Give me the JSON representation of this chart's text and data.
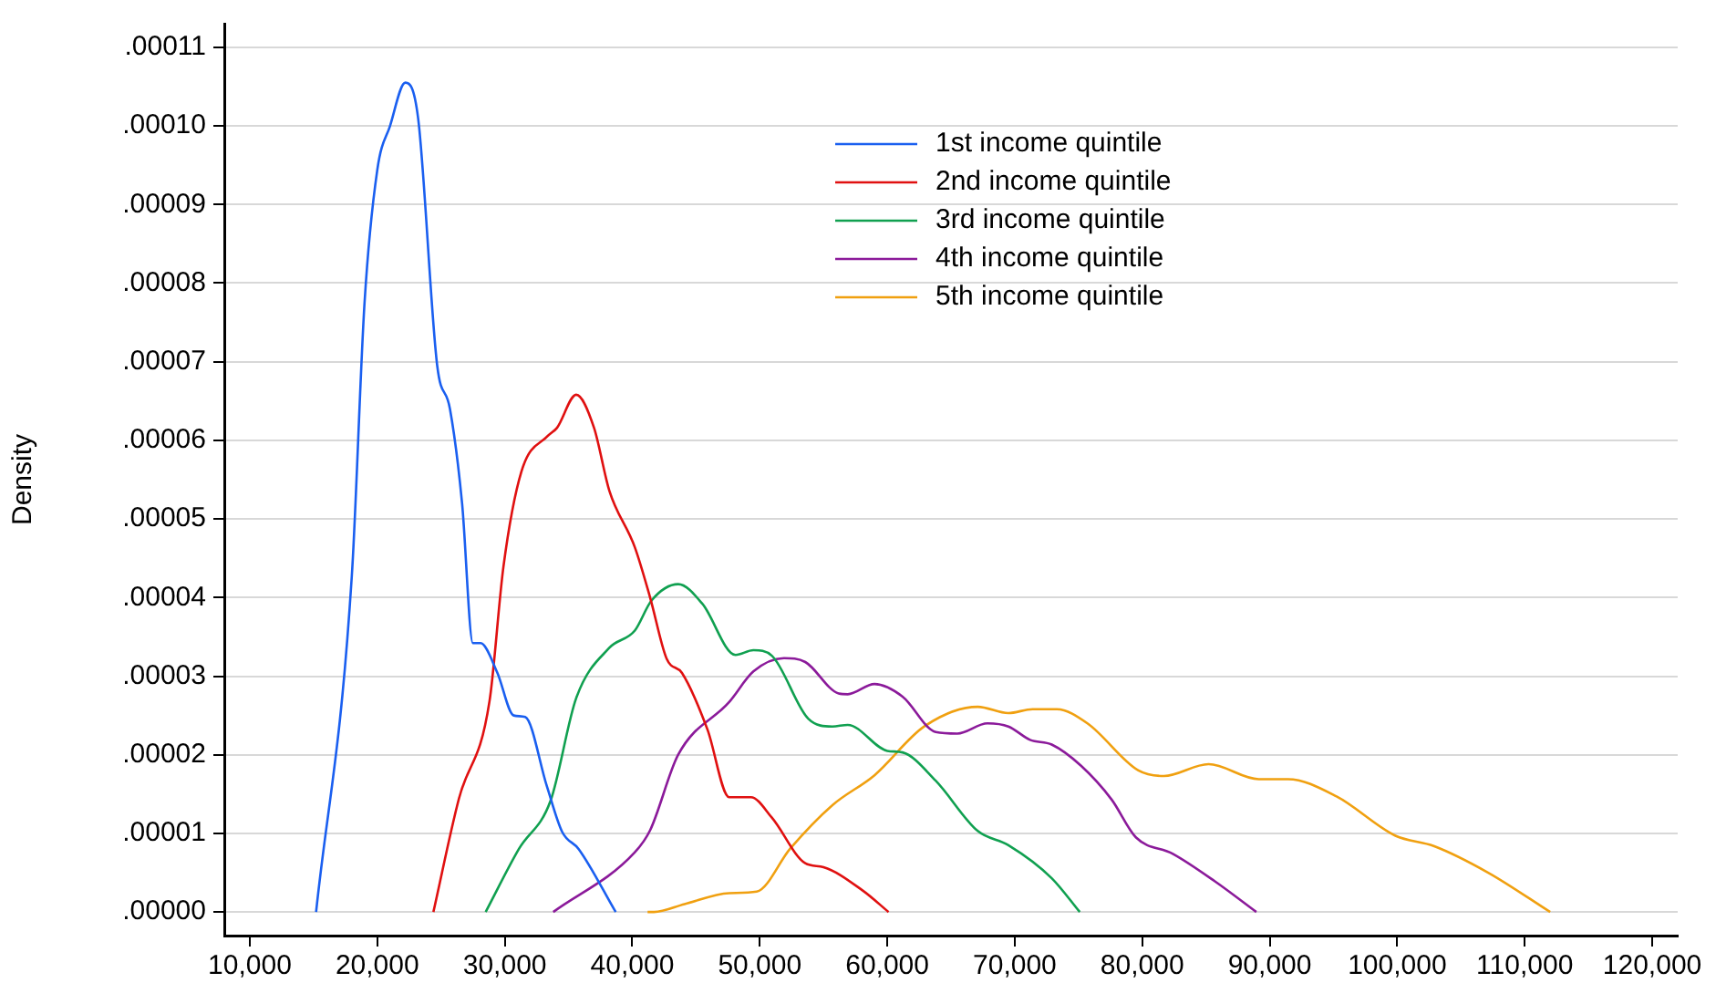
{
  "chart_data": {
    "type": "line",
    "ylabel": "Density",
    "xlim": [
      8000,
      122000
    ],
    "xticks": [
      {
        "value": 10000,
        "label": "10,000"
      },
      {
        "value": 20000,
        "label": "20,000"
      },
      {
        "value": 30000,
        "label": "30,000"
      },
      {
        "value": 40000,
        "label": "40,000"
      },
      {
        "value": 50000,
        "label": "50,000"
      },
      {
        "value": 60000,
        "label": "60,000"
      },
      {
        "value": 70000,
        "label": "70,000"
      },
      {
        "value": 80000,
        "label": "80,000"
      },
      {
        "value": 90000,
        "label": "90,000"
      },
      {
        "value": 100000,
        "label": "100,000"
      },
      {
        "value": 110000,
        "label": "110,000"
      },
      {
        "value": 120000,
        "label": "120,000"
      }
    ],
    "ylim": [
      -3e-06,
      0.000113
    ],
    "yticks": [
      {
        "value": 0,
        "label": ".00000"
      },
      {
        "value": 1e-05,
        "label": ".00001"
      },
      {
        "value": 2e-05,
        "label": ".00002"
      },
      {
        "value": 3e-05,
        "label": ".00003"
      },
      {
        "value": 4e-05,
        "label": ".00004"
      },
      {
        "value": 5e-05,
        "label": ".00005"
      },
      {
        "value": 6e-05,
        "label": ".00006"
      },
      {
        "value": 7e-05,
        "label": ".00007"
      },
      {
        "value": 8e-05,
        "label": ".00008"
      },
      {
        "value": 9e-05,
        "label": ".00009"
      },
      {
        "value": 0.0001,
        "label": ".00010"
      },
      {
        "value": 0.00011,
        "label": ".00011"
      }
    ],
    "grid": "y",
    "legend": "top",
    "marker": "none",
    "line_style": "solid",
    "series": [
      {
        "name": "1st income quintile",
        "color": "#1a5ff0",
        "x": [
          15200,
          18000,
          19000,
          20000,
          21000,
          22200,
          23200,
          24700,
          25700,
          26650,
          27500,
          28100,
          29400,
          30700,
          31600,
          33300,
          34500,
          35800,
          38700
        ],
        "values": [
          0,
          4.27e-05,
          7.75e-05,
          9.44e-05,
          0.0001,
          0.0001055,
          0.000101,
          6.95e-05,
          6.4e-05,
          5.2e-05,
          3.42e-05,
          3.42e-05,
          3.05e-05,
          2.5e-05,
          2.48e-05,
          1.6e-05,
          1.02e-05,
          8e-06,
          0
        ]
      },
      {
        "name": "2nd income quintile",
        "color": "#e01010",
        "x": [
          24400,
          26400,
          28800,
          29900,
          31300,
          33400,
          34100,
          35600,
          37000,
          38200,
          40200,
          41400,
          42700,
          43900,
          45900,
          47600,
          49300,
          50950,
          53570,
          55000,
          58100,
          60100
        ],
        "values": [
          0,
          1.44e-05,
          2.68e-05,
          4.4e-05,
          5.6e-05,
          6.06e-05,
          6.16e-05,
          6.58e-05,
          6.16e-05,
          5.36e-05,
          4.64e-05,
          4e-05,
          3.22e-05,
          3.04e-05,
          2.32e-05,
          1.46e-05,
          1.46e-05,
          1.2e-05,
          6.2e-06,
          5.7e-06,
          2.7e-06,
          0
        ]
      },
      {
        "name": "3rd income quintile",
        "color": "#10a050",
        "x": [
          28500,
          31100,
          33600,
          35600,
          38200,
          40200,
          41500,
          43600,
          45500,
          48100,
          49500,
          50950,
          53800,
          55700,
          56900,
          60000,
          61200,
          63800,
          67100,
          69500,
          72900,
          75100
        ],
        "values": [
          0,
          8e-06,
          1.42e-05,
          2.72e-05,
          3.36e-05,
          3.58e-05,
          3.96e-05,
          4.17e-05,
          3.92e-05,
          3.27e-05,
          3.33e-05,
          3.26e-05,
          2.46e-05,
          2.36e-05,
          2.38e-05,
          2.05e-05,
          2.03e-05,
          1.67e-05,
          1.03e-05,
          8.5e-06,
          4.3e-06,
          0
        ]
      },
      {
        "name": "4th income quintile",
        "color": "#8b1a9a",
        "x": [
          33800,
          40200,
          41400,
          43600,
          47600,
          49500,
          51900,
          53570,
          56190,
          56900,
          59000,
          61200,
          63800,
          65500,
          67860,
          69500,
          71200,
          72900,
          75200,
          77600,
          79500,
          82400,
          85700,
          88950
        ],
        "values": [
          0,
          7.6e-06,
          1.04e-05,
          2e-05,
          2.67e-05,
          3.06e-05,
          3.23e-05,
          3.18e-05,
          2.78e-05,
          2.77e-05,
          2.9e-05,
          2.74e-05,
          2.29e-05,
          2.27e-05,
          2.4e-05,
          2.36e-05,
          2.19e-05,
          2.13e-05,
          1.86e-05,
          1.43e-05,
          9.5e-06,
          7.4e-06,
          3.9e-06,
          0
        ]
      },
      {
        "name": "5th income quintile",
        "color": "#f0a010",
        "x": [
          41200,
          41700,
          44100,
          47600,
          49760,
          52400,
          55700,
          59000,
          62900,
          67100,
          69500,
          71400,
          73300,
          75700,
          79700,
          81700,
          85200,
          89140,
          91430,
          95240,
          99860,
          102860,
          107140,
          112000
        ],
        "values": [
          0,
          0,
          1e-06,
          2.4e-06,
          2.6e-06,
          8.1e-06,
          1.36e-05,
          1.74e-05,
          2.36e-05,
          2.61e-05,
          2.53e-05,
          2.58e-05,
          2.58e-05,
          2.4e-05,
          1.8e-05,
          1.73e-05,
          1.88e-05,
          1.69e-05,
          1.69e-05,
          1.47e-05,
          9.7e-06,
          8.4e-06,
          5e-06,
          0
        ]
      }
    ]
  }
}
